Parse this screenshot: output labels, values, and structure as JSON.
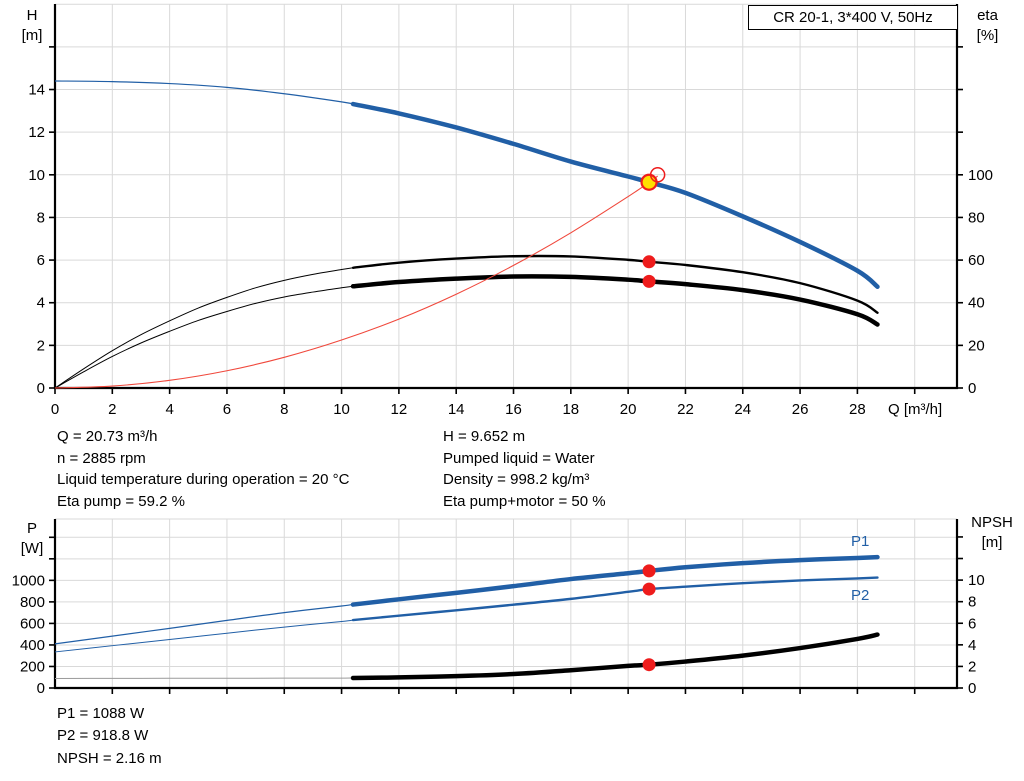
{
  "legend_box": "CR 20-1, 3*400 V, 50Hz",
  "colors": {
    "curve_blue": "#215fa6",
    "curve_black": "#000000",
    "marker_red": "#ee1c1c",
    "system_red": "#f0483c",
    "marker_yellow": "#ffdf00",
    "grid": "#d9d9d9",
    "npsh_thin": "#9a9a9a",
    "axis": "#000000"
  },
  "info_top": {
    "left": [
      "Q = 20.73 m³/h",
      "n = 2885 rpm",
      "Liquid temperature during operation = 20 °C",
      "Eta pump = 59.2 %"
    ],
    "right": [
      "H = 9.652 m",
      "Pumped liquid = Water",
      "Density = 998.2 kg/m³",
      "Eta pump+motor = 50 %"
    ]
  },
  "info_bottom": [
    "P1 = 1088 W",
    "P2 = 918.8 W",
    "NPSH = 2.16 m"
  ],
  "chart_data": [
    {
      "type": "line",
      "title": "CR 20-1, 3*400 V, 50Hz",
      "xlabel": "Q [m³/h]",
      "ylabel_left_lines": [
        "H",
        "[m]"
      ],
      "ylabel_right_lines": [
        "eta",
        "[%]"
      ],
      "xlim": [
        0,
        31.5
      ],
      "ylim_left": [
        0,
        18
      ],
      "ylim_right": [
        0,
        180
      ],
      "grid": true,
      "axes": {
        "x": {
          "ticks": [
            0,
            2,
            4,
            6,
            8,
            10,
            12,
            14,
            16,
            18,
            20,
            22,
            24,
            26,
            28
          ],
          "unlabeled": [
            30
          ],
          "grid": [
            2,
            4,
            6,
            8,
            10,
            12,
            14,
            16,
            18,
            20,
            22,
            24,
            26,
            28,
            30
          ]
        },
        "left": {
          "ticks": [
            0,
            2,
            4,
            6,
            8,
            10,
            12,
            14
          ],
          "unlabeled": [
            16
          ],
          "grid": [
            2,
            4,
            6,
            8,
            10,
            12,
            14,
            16,
            18
          ]
        },
        "right": {
          "ticks": [
            0,
            20,
            40,
            60,
            80,
            100
          ],
          "unlabeled": [
            120,
            140,
            160
          ]
        }
      },
      "series": [
        {
          "name": "H",
          "axis": "left",
          "color": "#215fa6",
          "thin_width": 1.2,
          "bold_width": 4.5,
          "bold_from": 10.4,
          "points": [
            [
              0,
              14.4
            ],
            [
              2,
              14.37
            ],
            [
              4,
              14.28
            ],
            [
              6,
              14.1
            ],
            [
              8,
              13.8
            ],
            [
              10,
              13.42
            ],
            [
              10.4,
              13.32
            ],
            [
              12,
              12.88
            ],
            [
              14,
              12.22
            ],
            [
              16,
              11.45
            ],
            [
              18,
              10.62
            ],
            [
              20,
              9.92
            ],
            [
              20.73,
              9.65
            ],
            [
              22,
              9.15
            ],
            [
              24,
              8.05
            ],
            [
              26,
              6.85
            ],
            [
              28,
              5.5
            ],
            [
              28.7,
              4.75
            ]
          ]
        },
        {
          "name": "Eta pump",
          "axis": "right",
          "color": "#000000",
          "thin_width": 1.0,
          "bold_width": 2.4,
          "bold_from": 10.4,
          "points": [
            [
              0,
              0
            ],
            [
              1,
              9
            ],
            [
              2,
              17.5
            ],
            [
              3,
              25
            ],
            [
              4,
              31.5
            ],
            [
              5,
              37.5
            ],
            [
              6,
              42.5
            ],
            [
              7,
              47
            ],
            [
              8,
              50.5
            ],
            [
              9,
              53.3
            ],
            [
              10,
              55.6
            ],
            [
              10.4,
              56.4
            ],
            [
              12,
              58.8
            ],
            [
              14,
              60.7
            ],
            [
              16,
              61.8
            ],
            [
              18,
              61.7
            ],
            [
              20,
              60.1
            ],
            [
              20.73,
              59.2
            ],
            [
              22,
              57.7
            ],
            [
              24,
              54.3
            ],
            [
              26,
              49.2
            ],
            [
              28,
              41
            ],
            [
              28.7,
              35.3
            ]
          ]
        },
        {
          "name": "Eta pump+motor",
          "axis": "right",
          "color": "#000000",
          "thin_width": 1.0,
          "bold_width": 4.5,
          "bold_from": 10.4,
          "points": [
            [
              0,
              0
            ],
            [
              1,
              7.6
            ],
            [
              2,
              14.8
            ],
            [
              3,
              21.1
            ],
            [
              4,
              26.6
            ],
            [
              5,
              31.7
            ],
            [
              6,
              35.9
            ],
            [
              7,
              39.7
            ],
            [
              8,
              42.7
            ],
            [
              9,
              45
            ],
            [
              10,
              47
            ],
            [
              10.4,
              47.7
            ],
            [
              12,
              49.7
            ],
            [
              14,
              51.3
            ],
            [
              16,
              52.3
            ],
            [
              18,
              52.1
            ],
            [
              20,
              50.8
            ],
            [
              20.73,
              50
            ],
            [
              22,
              48.7
            ],
            [
              24,
              45.9
            ],
            [
              26,
              41.5
            ],
            [
              28,
              34.6
            ],
            [
              28.7,
              29.8
            ]
          ]
        },
        {
          "name": "System curve",
          "axis": "left",
          "color": "#f0483c",
          "thin_width": 1.1,
          "bold_width": 1.1,
          "bold_from": null,
          "points": [
            [
              0,
              0
            ],
            [
              2,
              0.09
            ],
            [
              4,
              0.36
            ],
            [
              6,
              0.81
            ],
            [
              8,
              1.44
            ],
            [
              10,
              2.25
            ],
            [
              12,
              3.23
            ],
            [
              14,
              4.4
            ],
            [
              16,
              5.75
            ],
            [
              18,
              7.28
            ],
            [
              20,
              8.98
            ],
            [
              20.73,
              9.65
            ],
            [
              21.03,
              9.94
            ]
          ]
        }
      ],
      "markers": [
        {
          "name": "duty-point",
          "q": 20.73,
          "value": 9.652,
          "axis": "left",
          "style": "duty"
        },
        {
          "name": "rated-point",
          "q": 21.03,
          "value": 10.0,
          "axis": "left",
          "style": "open"
        },
        {
          "name": "eta-pump-point",
          "q": 20.73,
          "value": 59.2,
          "axis": "right",
          "style": "dot"
        },
        {
          "name": "eta-pump-motor-point",
          "q": 20.73,
          "value": 50,
          "axis": "right",
          "style": "dot"
        }
      ]
    },
    {
      "type": "line",
      "title": "Power and NPSH curves",
      "xlabel": "",
      "ylabel_left_lines": [
        "P",
        "[W]"
      ],
      "ylabel_right_lines": [
        "NPSH",
        "[m]"
      ],
      "xlim": [
        0,
        31.5
      ],
      "ylim_left": [
        0,
        1560
      ],
      "ylim_right": [
        0,
        15.6
      ],
      "grid": true,
      "axes": {
        "x": {
          "ticks": [],
          "unlabeled": [
            2,
            4,
            6,
            8,
            10,
            12,
            14,
            16,
            18,
            20,
            22,
            24,
            26,
            28,
            30
          ],
          "grid": [
            2,
            4,
            6,
            8,
            10,
            12,
            14,
            16,
            18,
            20,
            22,
            24,
            26,
            28,
            30
          ]
        },
        "left": {
          "ticks": [
            0,
            200,
            400,
            600,
            800,
            1000
          ],
          "unlabeled": [
            1200,
            1400
          ],
          "grid": [
            200,
            400,
            600,
            800,
            1000,
            1200,
            1400
          ]
        },
        "right": {
          "ticks": [
            0,
            2,
            4,
            6,
            8,
            10
          ],
          "unlabeled": [
            12,
            14
          ]
        }
      },
      "series": [
        {
          "name": "P1",
          "axis": "left",
          "color": "#215fa6",
          "thin_width": 1.2,
          "bold_width": 4.5,
          "bold_from": 10.4,
          "points": [
            [
              0,
              410
            ],
            [
              2,
              482
            ],
            [
              4,
              554
            ],
            [
              6,
              628
            ],
            [
              8,
              700
            ],
            [
              10,
              762
            ],
            [
              10.4,
              775
            ],
            [
              12,
              824
            ],
            [
              14,
              884
            ],
            [
              16,
              946
            ],
            [
              18,
              1012
            ],
            [
              20,
              1066
            ],
            [
              20.73,
              1088
            ],
            [
              22,
              1122
            ],
            [
              24,
              1160
            ],
            [
              26,
              1188
            ],
            [
              28,
              1208
            ],
            [
              28.7,
              1216
            ]
          ]
        },
        {
          "name": "P2",
          "axis": "left",
          "color": "#215fa6",
          "thin_width": 1.0,
          "bold_width": 2.4,
          "bold_from": 10.4,
          "points": [
            [
              0,
              335
            ],
            [
              2,
              393
            ],
            [
              4,
              451
            ],
            [
              6,
              509
            ],
            [
              8,
              566
            ],
            [
              10,
              618
            ],
            [
              10.4,
              631
            ],
            [
              12,
              672
            ],
            [
              14,
              722
            ],
            [
              16,
              774
            ],
            [
              18,
              828
            ],
            [
              20,
              893
            ],
            [
              20.73,
              919
            ],
            [
              22,
              941
            ],
            [
              24,
              974
            ],
            [
              26,
              999
            ],
            [
              28,
              1018
            ],
            [
              28.7,
              1026
            ]
          ]
        },
        {
          "name": "NPSH",
          "axis": "right",
          "color": "#000000",
          "thin_color": "#9a9a9a",
          "thin_width": 1.0,
          "bold_width": 4.5,
          "bold_from": 10.4,
          "points": [
            [
              0,
              0.88
            ],
            [
              2,
              0.89
            ],
            [
              4,
              0.9
            ],
            [
              6,
              0.9
            ],
            [
              8,
              0.91
            ],
            [
              10,
              0.92
            ],
            [
              10.4,
              0.93
            ],
            [
              12,
              0.98
            ],
            [
              14,
              1.1
            ],
            [
              16,
              1.3
            ],
            [
              18,
              1.65
            ],
            [
              20,
              2.05
            ],
            [
              20.73,
              2.16
            ],
            [
              22,
              2.45
            ],
            [
              24,
              3.0
            ],
            [
              26,
              3.7
            ],
            [
              28,
              4.55
            ],
            [
              28.7,
              4.95
            ]
          ]
        }
      ],
      "markers": [
        {
          "name": "p1-point",
          "q": 20.73,
          "value": 1088,
          "axis": "left",
          "style": "dot"
        },
        {
          "name": "p2-point",
          "q": 20.73,
          "value": 918.8,
          "axis": "left",
          "style": "dot"
        },
        {
          "name": "npsh-point",
          "q": 20.73,
          "value": 2.16,
          "axis": "right",
          "style": "dot"
        }
      ]
    }
  ]
}
